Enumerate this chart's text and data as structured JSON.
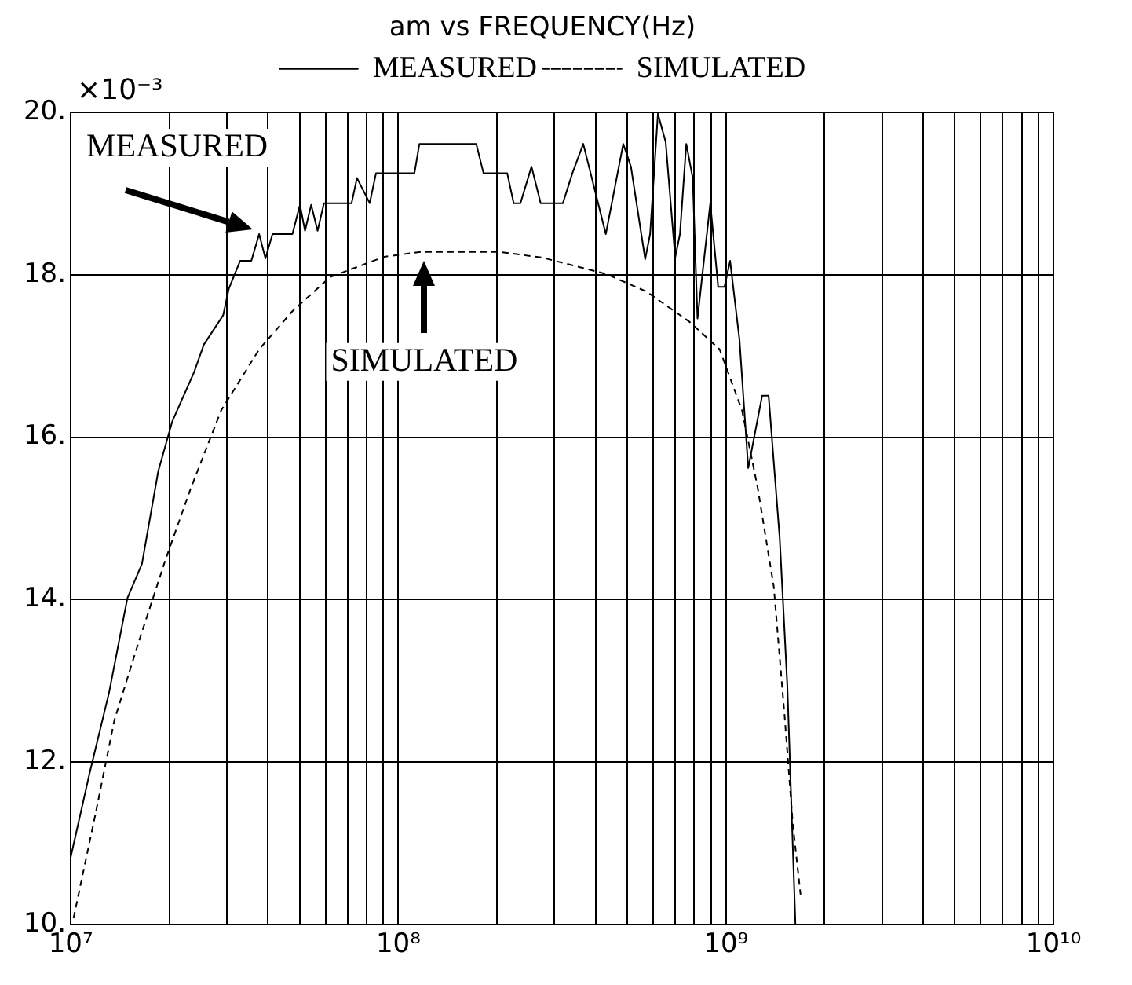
{
  "chart_data": {
    "type": "line",
    "title": "am vs FREQUENCY(Hz)",
    "ylabel": "×10⁻³",
    "log": "x",
    "grid": true,
    "legend": "top",
    "marker": "none",
    "xlim": [
      10000000,
      10000000000
    ],
    "xticks": [
      {
        "value": 10000000,
        "label": "10⁷"
      },
      {
        "value": 20000000,
        "label": null
      },
      {
        "value": 30000000,
        "label": null
      },
      {
        "value": 40000000,
        "label": null
      },
      {
        "value": 50000000,
        "label": null
      },
      {
        "value": 60000000,
        "label": null
      },
      {
        "value": 70000000,
        "label": null
      },
      {
        "value": 80000000,
        "label": null
      },
      {
        "value": 90000000,
        "label": null
      },
      {
        "value": 100000000,
        "label": "10⁸"
      },
      {
        "value": 200000000,
        "label": null
      },
      {
        "value": 300000000,
        "label": null
      },
      {
        "value": 400000000,
        "label": null
      },
      {
        "value": 500000000,
        "label": null
      },
      {
        "value": 600000000,
        "label": null
      },
      {
        "value": 700000000,
        "label": null
      },
      {
        "value": 800000000,
        "label": null
      },
      {
        "value": 900000000,
        "label": null
      },
      {
        "value": 1000000000,
        "label": "10⁹"
      },
      {
        "value": 2000000000,
        "label": null
      },
      {
        "value": 3000000000,
        "label": null
      },
      {
        "value": 4000000000,
        "label": null
      },
      {
        "value": 5000000000,
        "label": null
      },
      {
        "value": 6000000000,
        "label": null
      },
      {
        "value": 7000000000,
        "label": null
      },
      {
        "value": 8000000000,
        "label": null
      },
      {
        "value": 9000000000,
        "label": null
      },
      {
        "value": 10000000000,
        "label": "10¹⁰"
      }
    ],
    "ylim": [
      10,
      20
    ],
    "yticks": [
      {
        "value": 10,
        "label": "10."
      },
      {
        "value": 12,
        "label": "12."
      },
      {
        "value": 14,
        "label": "14."
      },
      {
        "value": 16,
        "label": "16."
      },
      {
        "value": 18,
        "label": "18."
      },
      {
        "value": 20,
        "label": "20."
      }
    ],
    "series": [
      {
        "name": "MEASURED",
        "color": "#000000",
        "line_style": "solid",
        "x": [
          10000000,
          11400000,
          13100000,
          14900000,
          16500000,
          18500000,
          20400000,
          23800000,
          25500000,
          29200000,
          30400000,
          32900000,
          35600000,
          37600000,
          39300000,
          41300000,
          47500000,
          50100000,
          51900000,
          54200000,
          56700000,
          59300000,
          72000000,
          74800000,
          81800000,
          85500000,
          112000000,
          116000000,
          173000000,
          182000000,
          215000000,
          225000000,
          236000000,
          255000000,
          272000000,
          318000000,
          340000000,
          367000000,
          430000000,
          486000000,
          513000000,
          567000000,
          587000000,
          620000000,
          655000000,
          700000000,
          724000000,
          757000000,
          792000000,
          819000000,
          896000000,
          947000000,
          990000000,
          1030000000,
          1100000000,
          1170000000,
          1290000000,
          1350000000,
          1460000000,
          1540000000,
          1630000000
        ],
        "values": [
          10.83,
          11.85,
          12.86,
          14.02,
          14.44,
          15.58,
          16.19,
          16.8,
          17.14,
          17.5,
          17.83,
          18.17,
          18.17,
          18.5,
          18.2,
          18.5,
          18.5,
          18.86,
          18.54,
          18.86,
          18.54,
          18.88,
          18.88,
          19.19,
          18.88,
          19.25,
          19.25,
          19.61,
          19.61,
          19.25,
          19.25,
          18.88,
          18.88,
          19.33,
          18.88,
          18.88,
          19.25,
          19.61,
          18.5,
          19.61,
          19.33,
          18.19,
          18.5,
          19.98,
          19.63,
          18.21,
          18.5,
          19.61,
          19.19,
          17.46,
          18.88,
          17.85,
          17.85,
          18.17,
          17.2,
          15.62,
          16.51,
          16.51,
          14.75,
          12.94,
          10
        ]
      },
      {
        "name": "SIMULATED",
        "color": "#000000",
        "line_style": "dashed",
        "x": [
          10200000,
          11900000,
          13600000,
          16100000,
          19500000,
          23300000,
          28800000,
          37600000,
          47500000,
          61900000,
          90600000,
          117000000,
          204000000,
          275000000,
          430000000,
          573000000,
          774000000,
          957000000,
          1120000000,
          1250000000,
          1400000000,
          1510000000,
          1600000000,
          1690000000
        ],
        "values": [
          10.08,
          11.36,
          12.52,
          13.47,
          14.5,
          15.38,
          16.33,
          17.08,
          17.55,
          17.97,
          18.22,
          18.28,
          18.28,
          18.21,
          18.01,
          17.79,
          17.42,
          17.08,
          16.33,
          15.38,
          14.16,
          12.58,
          11.24,
          10.37
        ]
      }
    ],
    "annotations": [
      {
        "text": "MEASURED",
        "x": 37600000,
        "y": 18.5
      },
      {
        "text": "SIMULATED",
        "x": 120000000,
        "y": 18.28
      }
    ]
  }
}
